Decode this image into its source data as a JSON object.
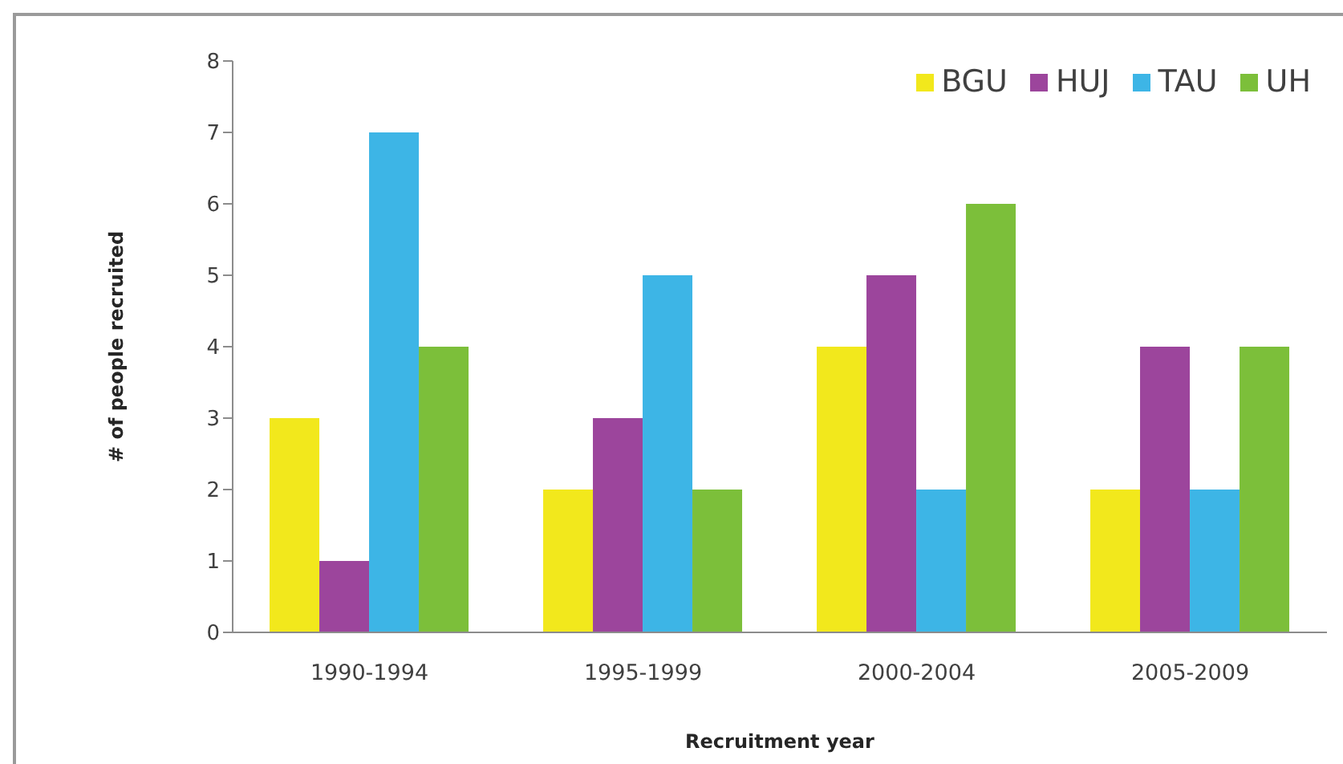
{
  "chart_data": {
    "type": "bar",
    "categories": [
      "1990-1994",
      "1995-1999",
      "2000-2004",
      "2005-2009"
    ],
    "series": [
      {
        "name": "BGU",
        "color": "#f2e81c",
        "values": [
          3,
          2,
          4,
          2
        ]
      },
      {
        "name": "HUJ",
        "color": "#9c459c",
        "values": [
          1,
          3,
          5,
          4
        ]
      },
      {
        "name": "TAU",
        "color": "#3db5e6",
        "values": [
          7,
          5,
          2,
          2
        ]
      },
      {
        "name": "UH",
        "color": "#7cbf3a",
        "values": [
          4,
          2,
          6,
          4
        ]
      }
    ],
    "xlabel": "Recruitment year",
    "ylabel": "# of people recruited",
    "ylim": [
      0,
      8
    ],
    "yticks": [
      0,
      1,
      2,
      3,
      4,
      5,
      6,
      7,
      8
    ],
    "legend": "top right"
  }
}
